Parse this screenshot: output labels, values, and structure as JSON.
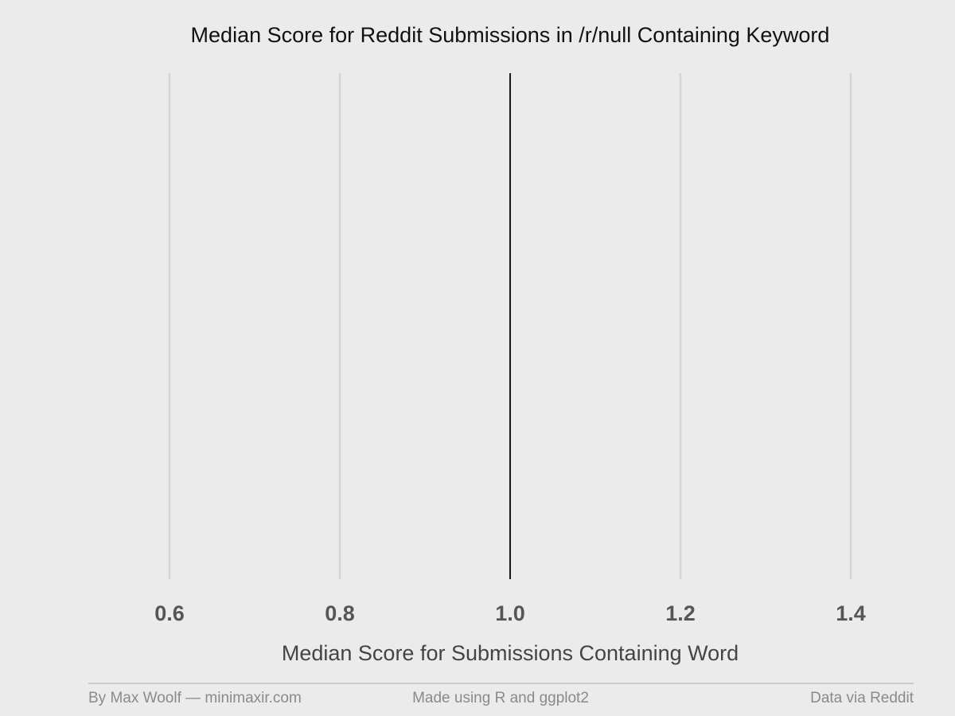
{
  "chart_data": {
    "type": "bar",
    "title": "Median Score for Reddit Submissions in /r/null Containing Keyword",
    "xlabel": "Median Score for Submissions Containing Word",
    "ylabel": "",
    "categories": [],
    "values": [],
    "xlim": [
      0.5,
      1.5
    ],
    "x_ticks": [
      0.6,
      0.8,
      1.0,
      1.2,
      1.4
    ],
    "x_tick_labels": [
      "0.6",
      "0.8",
      "1.0",
      "1.2",
      "1.4"
    ],
    "reference_line": {
      "x": 1.0,
      "color": "#1a1a1a"
    },
    "grid": true,
    "legend": "none"
  },
  "footer": {
    "left": "By Max Woolf — minimaxir.com",
    "center": "Made using R and ggplot2",
    "right": "Data via Reddit"
  },
  "colors": {
    "background": "#ebebeb",
    "gridline": "#d4d4d4",
    "reference_line": "#1a1a1a",
    "footer_rule": "#bfbfbf"
  }
}
